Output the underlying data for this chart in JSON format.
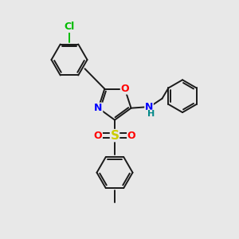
{
  "bg_color": "#e8e8e8",
  "bond_color": "#1a1a1a",
  "bond_width": 1.4,
  "atom_colors": {
    "N": "#0000ff",
    "O": "#ff0000",
    "S": "#cccc00",
    "Cl": "#00bb00",
    "H": "#008888"
  },
  "scale": 10,
  "figsize": [
    3.0,
    3.0
  ],
  "dpi": 100
}
